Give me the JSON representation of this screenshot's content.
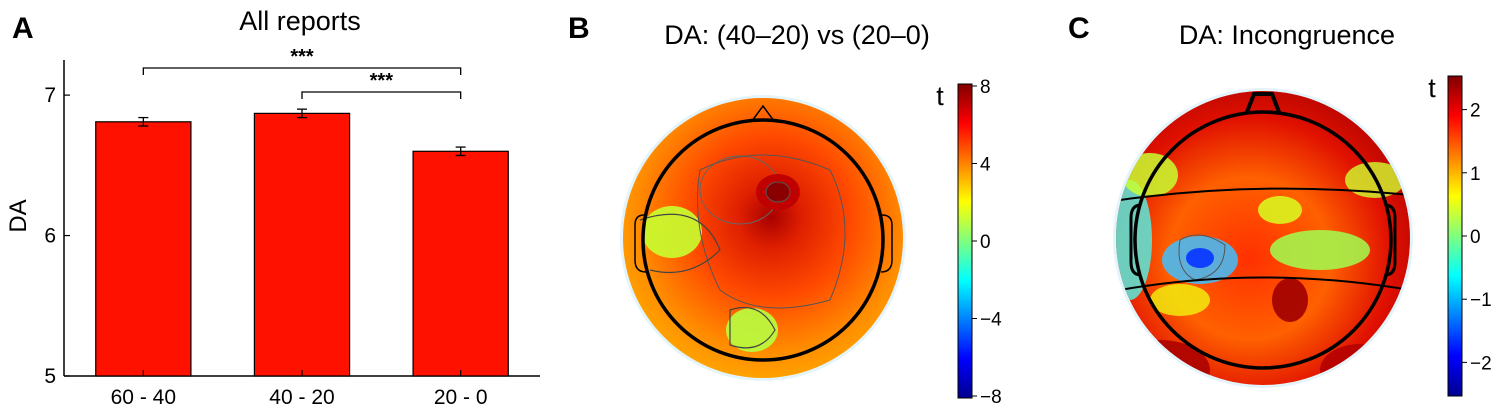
{
  "panels": {
    "a": {
      "letter": "A"
    },
    "b": {
      "letter": "B",
      "title": "DA: (40–20) vs (20–0)"
    },
    "c": {
      "letter": "C",
      "title": "DA: Incongruence"
    }
  },
  "chart_data": [
    {
      "type": "bar",
      "title": "All reports",
      "xlabel": "",
      "ylabel": "DA",
      "categories": [
        "60 - 40",
        "40 - 20",
        "20 - 0"
      ],
      "values": [
        6.81,
        6.87,
        6.6
      ],
      "errors": [
        0.03,
        0.03,
        0.03
      ],
      "ylim": [
        5,
        7.25
      ],
      "yticks": [
        "5",
        "6",
        "7"
      ],
      "bar_color": "#ff1100",
      "significance": [
        {
          "from": "60 - 40",
          "to": "20 - 0",
          "label": "***"
        },
        {
          "from": "40 - 20",
          "to": "20 - 0",
          "label": "***"
        }
      ]
    },
    {
      "type": "heatmap",
      "title": "DA: (40–20) vs (20–0)",
      "colorbar_label": "t",
      "colorbar_range": [
        -8,
        8
      ],
      "colorbar_ticks": [
        "8",
        "4",
        "0",
        "−4",
        "−8"
      ]
    },
    {
      "type": "heatmap",
      "title": "DA: Incongruence",
      "colorbar_label": "t",
      "colorbar_range": [
        -2.5,
        2.5
      ],
      "colorbar_ticks": [
        "2",
        "1",
        "0",
        "−1",
        "−2"
      ]
    }
  ],
  "colors": {
    "bar": "#ff1100",
    "colormap": "jet"
  }
}
